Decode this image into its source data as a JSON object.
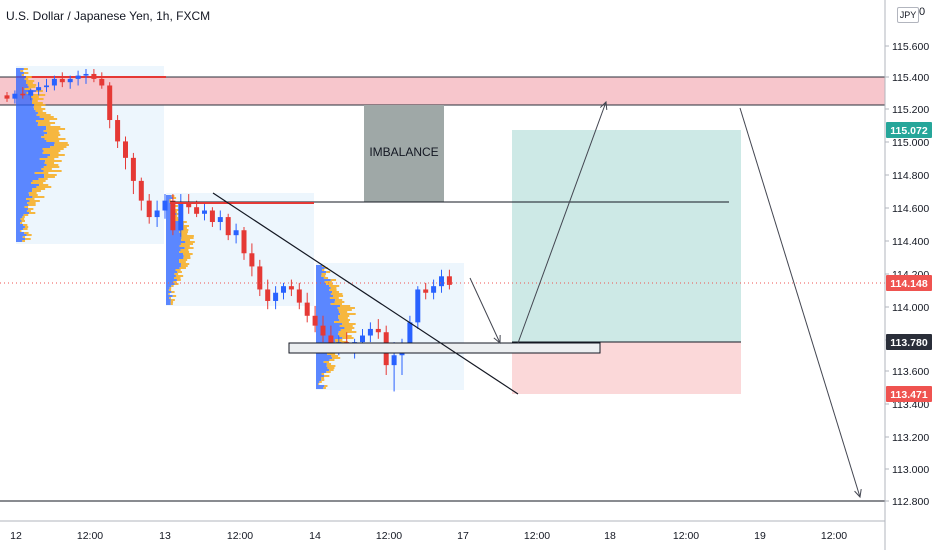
{
  "header": {
    "title": "U.S. Dollar / Japanese Yen, 1h, FXCM",
    "currency": "JPY",
    "corner_value": "0"
  },
  "chart_data": {
    "type": "candlestick",
    "symbol": "USDJPY",
    "timeframe": "1h",
    "y_axis": {
      "ticks": [
        "115.600",
        "115.400",
        "115.200",
        "115.000",
        "114.800",
        "114.600",
        "114.400",
        "114.200",
        "114.000",
        "113.800",
        "113.600",
        "113.400",
        "113.200",
        "113.000",
        "112.800"
      ],
      "ylim": [
        112.75,
        115.75
      ]
    },
    "x_axis": {
      "ticks": [
        "12",
        "12:00",
        "13",
        "12:00",
        "14",
        "12:00",
        "17",
        "12:00",
        "18",
        "12:00",
        "19",
        "12:00"
      ]
    },
    "price_tags": [
      {
        "value": "115.072",
        "color": "#26a69a"
      },
      {
        "value": "114.148",
        "color": "#ef5350"
      },
      {
        "value": "113.780",
        "color": "#2a2e39"
      },
      {
        "value": "113.471",
        "color": "#ef5350"
      }
    ],
    "annotations": [
      {
        "type": "zone",
        "label": "IMBALANCE",
        "from": 114.63,
        "to": 115.2
      },
      {
        "type": "zone",
        "label": "",
        "from": 115.22,
        "to": 115.39,
        "color": "#f7c6cc"
      },
      {
        "type": "long-position",
        "entry": 113.78,
        "target": 115.07,
        "stop": 113.47
      },
      {
        "type": "horizontal-line",
        "value": 114.63
      },
      {
        "type": "horizontal-line",
        "value": 112.82
      },
      {
        "type": "horizontal-line",
        "value": 114.148,
        "style": "dotted"
      }
    ],
    "candles": [
      [
        115.3,
        115.32,
        115.26,
        115.28
      ],
      [
        115.28,
        115.33,
        115.25,
        115.31
      ],
      [
        115.31,
        115.35,
        115.28,
        115.3
      ],
      [
        115.3,
        115.34,
        115.27,
        115.33
      ],
      [
        115.33,
        115.38,
        115.3,
        115.35
      ],
      [
        115.35,
        115.4,
        115.32,
        115.36
      ],
      [
        115.36,
        115.42,
        115.33,
        115.4
      ],
      [
        115.4,
        115.44,
        115.35,
        115.38
      ],
      [
        115.38,
        115.42,
        115.34,
        115.4
      ],
      [
        115.4,
        115.45,
        115.36,
        115.42
      ],
      [
        115.42,
        115.46,
        115.37,
        115.43
      ],
      [
        115.43,
        115.46,
        115.38,
        115.4
      ],
      [
        115.4,
        115.44,
        115.34,
        115.36
      ],
      [
        115.36,
        115.38,
        115.1,
        115.15
      ],
      [
        115.15,
        115.18,
        114.98,
        115.02
      ],
      [
        115.02,
        115.05,
        114.85,
        114.92
      ],
      [
        114.92,
        114.95,
        114.7,
        114.78
      ],
      [
        114.78,
        114.8,
        114.6,
        114.66
      ],
      [
        114.66,
        114.7,
        114.52,
        114.56
      ],
      [
        114.56,
        114.66,
        114.5,
        114.6
      ],
      [
        114.6,
        114.7,
        114.55,
        114.66
      ],
      [
        114.66,
        114.7,
        114.45,
        114.48
      ],
      [
        114.48,
        114.7,
        114.44,
        114.64
      ],
      [
        114.64,
        114.7,
        114.58,
        114.62
      ],
      [
        114.62,
        114.66,
        114.56,
        114.58
      ],
      [
        114.58,
        114.64,
        114.54,
        114.6
      ],
      [
        114.6,
        114.62,
        114.5,
        114.53
      ],
      [
        114.53,
        114.6,
        114.48,
        114.56
      ],
      [
        114.56,
        114.58,
        114.42,
        114.45
      ],
      [
        114.45,
        114.52,
        114.4,
        114.48
      ],
      [
        114.48,
        114.5,
        114.3,
        114.34
      ],
      [
        114.34,
        114.4,
        114.2,
        114.26
      ],
      [
        114.26,
        114.3,
        114.08,
        114.12
      ],
      [
        114.12,
        114.18,
        114.0,
        114.05
      ],
      [
        114.05,
        114.14,
        114.0,
        114.1
      ],
      [
        114.1,
        114.16,
        114.06,
        114.14
      ],
      [
        114.14,
        114.18,
        114.08,
        114.12
      ],
      [
        114.12,
        114.16,
        114.0,
        114.04
      ],
      [
        114.04,
        114.1,
        113.92,
        113.96
      ],
      [
        113.96,
        114.02,
        113.86,
        113.9
      ],
      [
        113.9,
        113.96,
        113.8,
        113.84
      ],
      [
        113.84,
        113.9,
        113.74,
        113.78
      ],
      [
        113.78,
        113.84,
        113.72,
        113.8
      ],
      [
        113.8,
        113.86,
        113.74,
        113.76
      ],
      [
        113.76,
        113.82,
        113.7,
        113.8
      ],
      [
        113.8,
        113.88,
        113.76,
        113.84
      ],
      [
        113.84,
        113.92,
        113.8,
        113.88
      ],
      [
        113.88,
        113.94,
        113.82,
        113.86
      ],
      [
        113.86,
        113.9,
        113.6,
        113.66
      ],
      [
        113.66,
        113.8,
        113.5,
        113.72
      ],
      [
        113.72,
        113.82,
        113.6,
        113.78
      ],
      [
        113.78,
        113.96,
        113.74,
        113.92
      ],
      [
        113.92,
        114.14,
        113.88,
        114.12
      ],
      [
        114.12,
        114.16,
        114.06,
        114.1
      ],
      [
        114.1,
        114.18,
        114.06,
        114.14
      ],
      [
        114.14,
        114.24,
        114.1,
        114.2
      ],
      [
        114.2,
        114.24,
        114.12,
        114.148
      ]
    ]
  }
}
